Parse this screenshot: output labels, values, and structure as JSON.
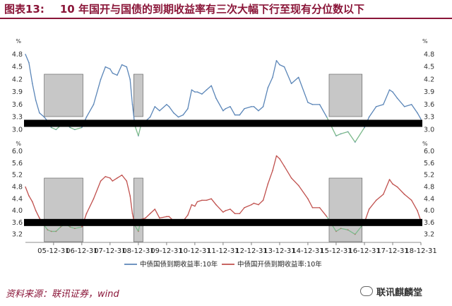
{
  "title": {
    "label": "图表13:",
    "text": "10 年国开与国债的到期收益率有三次大幅下行至现有分位数以下"
  },
  "source": "资料来源：联讯证券，wind",
  "watermark": "联讯麒麟堂",
  "colors": {
    "title": "#8a1538",
    "series_treasury": "#5b86b8",
    "series_cdb": "#c0504d",
    "lowzone_green": "#7ab98a",
    "shade_fill": "#b4b4b4",
    "band": "#000000"
  },
  "chart_data": [
    {
      "type": "line",
      "unit": "%",
      "x_ticks": [
        "05-12-31",
        "06-12-31",
        "07-12-31",
        "08-12-31",
        "09-12-31",
        "10-12-31",
        "11-12-31",
        "12-12-31",
        "13-12-31",
        "14-12-31",
        "15-12-31",
        "16-12-31",
        "17-12-31",
        "18-12-31"
      ],
      "ylim": [
        2.5,
        5.0
      ],
      "y_ticks": [
        3.0,
        3.3,
        3.6,
        3.9,
        4.2,
        4.5,
        4.8
      ],
      "threshold": 3.15,
      "series": [
        {
          "name": "中债国债到期收益率:10年",
          "points": [
            [
              "2005-01-01",
              4.8
            ],
            [
              "2005-02-15",
              4.6
            ],
            [
              "2005-04-01",
              4.1
            ],
            [
              "2005-05-15",
              3.7
            ],
            [
              "2005-07-01",
              3.4
            ],
            [
              "2005-09-01",
              3.3
            ],
            [
              "2005-10-15",
              3.2
            ],
            [
              "2005-12-01",
              3.05
            ],
            [
              "2006-02-01",
              3.0
            ],
            [
              "2006-04-01",
              3.1
            ],
            [
              "2006-06-01",
              3.15
            ],
            [
              "2006-08-01",
              3.05
            ],
            [
              "2006-10-01",
              3.0
            ],
            [
              "2006-12-31",
              3.05
            ],
            [
              "2007-03-01",
              3.3
            ],
            [
              "2007-06-01",
              3.6
            ],
            [
              "2007-09-01",
              4.2
            ],
            [
              "2007-11-01",
              4.5
            ],
            [
              "2007-12-31",
              4.45
            ],
            [
              "2008-02-01",
              4.35
            ],
            [
              "2008-04-01",
              4.3
            ],
            [
              "2008-06-01",
              4.55
            ],
            [
              "2008-08-01",
              4.5
            ],
            [
              "2008-09-15",
              4.2
            ],
            [
              "2008-10-15",
              3.6
            ],
            [
              "2008-11-15",
              3.1
            ],
            [
              "2008-12-31",
              2.85
            ],
            [
              "2009-02-01",
              3.1
            ],
            [
              "2009-04-01",
              3.2
            ],
            [
              "2009-06-01",
              3.3
            ],
            [
              "2009-08-01",
              3.55
            ],
            [
              "2009-10-01",
              3.45
            ],
            [
              "2009-12-31",
              3.6
            ],
            [
              "2010-02-01",
              3.55
            ],
            [
              "2010-04-01",
              3.4
            ],
            [
              "2010-06-01",
              3.3
            ],
            [
              "2010-08-01",
              3.35
            ],
            [
              "2010-10-01",
              3.5
            ],
            [
              "2010-11-20",
              3.95
            ],
            [
              "2010-12-31",
              3.9
            ],
            [
              "2011-02-01",
              3.9
            ],
            [
              "2011-04-01",
              3.85
            ],
            [
              "2011-06-01",
              3.95
            ],
            [
              "2011-08-01",
              4.05
            ],
            [
              "2011-10-01",
              3.75
            ],
            [
              "2011-12-31",
              3.45
            ],
            [
              "2012-02-01",
              3.5
            ],
            [
              "2012-04-01",
              3.55
            ],
            [
              "2012-06-01",
              3.35
            ],
            [
              "2012-08-01",
              3.35
            ],
            [
              "2012-10-01",
              3.5
            ],
            [
              "2012-12-31",
              3.55
            ],
            [
              "2013-02-01",
              3.55
            ],
            [
              "2013-04-01",
              3.45
            ],
            [
              "2013-06-01",
              3.55
            ],
            [
              "2013-08-01",
              4.0
            ],
            [
              "2013-10-01",
              4.25
            ],
            [
              "2013-11-20",
              4.65
            ],
            [
              "2013-12-31",
              4.55
            ],
            [
              "2014-03-01",
              4.5
            ],
            [
              "2014-06-01",
              4.1
            ],
            [
              "2014-09-01",
              4.25
            ],
            [
              "2014-12-31",
              3.65
            ],
            [
              "2015-03-01",
              3.6
            ],
            [
              "2015-06-01",
              3.6
            ],
            [
              "2015-09-01",
              3.3
            ],
            [
              "2015-12-31",
              2.85
            ],
            [
              "2016-03-01",
              2.9
            ],
            [
              "2016-06-01",
              2.95
            ],
            [
              "2016-09-01",
              2.7
            ],
            [
              "2016-12-31",
              3.05
            ],
            [
              "2017-03-01",
              3.3
            ],
            [
              "2017-06-01",
              3.55
            ],
            [
              "2017-09-01",
              3.6
            ],
            [
              "2017-11-20",
              3.95
            ],
            [
              "2017-12-31",
              3.9
            ],
            [
              "2018-03-01",
              3.75
            ],
            [
              "2018-06-01",
              3.55
            ],
            [
              "2018-09-01",
              3.6
            ],
            [
              "2018-11-15",
              3.4
            ],
            [
              "2018-12-31",
              3.25
            ]
          ]
        }
      ]
    },
    {
      "type": "line",
      "unit": "%",
      "x_ticks": [
        "05-12-31",
        "06-12-31",
        "07-12-31",
        "08-12-31",
        "09-12-31",
        "10-12-31",
        "11-12-31",
        "12-12-31",
        "13-12-31",
        "14-12-31",
        "15-12-31",
        "16-12-31",
        "17-12-31",
        "18-12-31"
      ],
      "ylim": [
        3.0,
        6.1
      ],
      "y_ticks": [
        3.2,
        3.6,
        4.0,
        4.4,
        4.8,
        5.2,
        5.6,
        6.0
      ],
      "threshold": 3.6,
      "series": [
        {
          "name": "中债国开债到期收益率:10年",
          "points": [
            [
              "2005-01-01",
              4.8
            ],
            [
              "2005-02-15",
              4.5
            ],
            [
              "2005-04-01",
              4.3
            ],
            [
              "2005-05-15",
              4.0
            ],
            [
              "2005-07-01",
              3.75
            ],
            [
              "2005-09-01",
              3.5
            ],
            [
              "2005-10-15",
              3.35
            ],
            [
              "2005-12-01",
              3.3
            ],
            [
              "2006-02-01",
              3.3
            ],
            [
              "2006-04-01",
              3.45
            ],
            [
              "2006-06-01",
              3.55
            ],
            [
              "2006-08-01",
              3.45
            ],
            [
              "2006-10-01",
              3.4
            ],
            [
              "2006-12-31",
              3.45
            ],
            [
              "2007-03-01",
              3.9
            ],
            [
              "2007-06-01",
              4.4
            ],
            [
              "2007-09-01",
              5.0
            ],
            [
              "2007-11-01",
              5.15
            ],
            [
              "2007-12-31",
              5.1
            ],
            [
              "2008-02-01",
              5.0
            ],
            [
              "2008-04-01",
              5.1
            ],
            [
              "2008-06-01",
              5.2
            ],
            [
              "2008-08-01",
              5.0
            ],
            [
              "2008-09-15",
              4.5
            ],
            [
              "2008-10-15",
              3.9
            ],
            [
              "2008-11-15",
              3.5
            ],
            [
              "2008-12-31",
              3.3
            ],
            [
              "2009-02-01",
              3.7
            ],
            [
              "2009-04-01",
              3.75
            ],
            [
              "2009-06-01",
              3.9
            ],
            [
              "2009-08-01",
              4.05
            ],
            [
              "2009-10-01",
              3.75
            ],
            [
              "2009-12-31",
              3.8
            ],
            [
              "2010-02-01",
              3.8
            ],
            [
              "2010-04-01",
              3.65
            ],
            [
              "2010-06-01",
              3.6
            ],
            [
              "2010-08-01",
              3.65
            ],
            [
              "2010-10-01",
              3.85
            ],
            [
              "2010-11-20",
              4.2
            ],
            [
              "2010-12-31",
              4.15
            ],
            [
              "2011-02-01",
              4.3
            ],
            [
              "2011-04-01",
              4.35
            ],
            [
              "2011-06-01",
              4.35
            ],
            [
              "2011-08-01",
              4.4
            ],
            [
              "2011-10-01",
              4.2
            ],
            [
              "2011-12-31",
              3.95
            ],
            [
              "2012-02-01",
              4.0
            ],
            [
              "2012-04-01",
              4.05
            ],
            [
              "2012-06-01",
              3.9
            ],
            [
              "2012-08-01",
              3.9
            ],
            [
              "2012-10-01",
              4.1
            ],
            [
              "2012-12-31",
              4.2
            ],
            [
              "2013-02-01",
              4.25
            ],
            [
              "2013-04-01",
              4.2
            ],
            [
              "2013-06-01",
              4.35
            ],
            [
              "2013-08-01",
              4.9
            ],
            [
              "2013-10-01",
              5.35
            ],
            [
              "2013-11-20",
              5.85
            ],
            [
              "2013-12-31",
              5.75
            ],
            [
              "2014-03-01",
              5.5
            ],
            [
              "2014-06-01",
              5.1
            ],
            [
              "2014-09-01",
              4.85
            ],
            [
              "2014-12-31",
              4.4
            ],
            [
              "2015-03-01",
              4.1
            ],
            [
              "2015-06-01",
              4.1
            ],
            [
              "2015-09-01",
              3.8
            ],
            [
              "2015-12-31",
              3.3
            ],
            [
              "2016-03-01",
              3.4
            ],
            [
              "2016-06-01",
              3.35
            ],
            [
              "2016-09-01",
              3.2
            ],
            [
              "2016-12-31",
              3.6
            ],
            [
              "2017-03-01",
              4.05
            ],
            [
              "2017-06-01",
              4.35
            ],
            [
              "2017-09-01",
              4.55
            ],
            [
              "2017-11-20",
              5.05
            ],
            [
              "2017-12-31",
              4.9
            ],
            [
              "2018-03-01",
              4.8
            ],
            [
              "2018-06-01",
              4.55
            ],
            [
              "2018-09-01",
              4.35
            ],
            [
              "2018-11-15",
              4.0
            ],
            [
              "2018-12-31",
              3.65
            ]
          ]
        }
      ]
    }
  ],
  "shaded_periods": [
    {
      "start": "2005-09-01",
      "end": "2007-01-15"
    },
    {
      "start": "2008-11-01",
      "end": "2009-03-01"
    },
    {
      "start": "2015-10-01",
      "end": "2016-12-01"
    }
  ]
}
